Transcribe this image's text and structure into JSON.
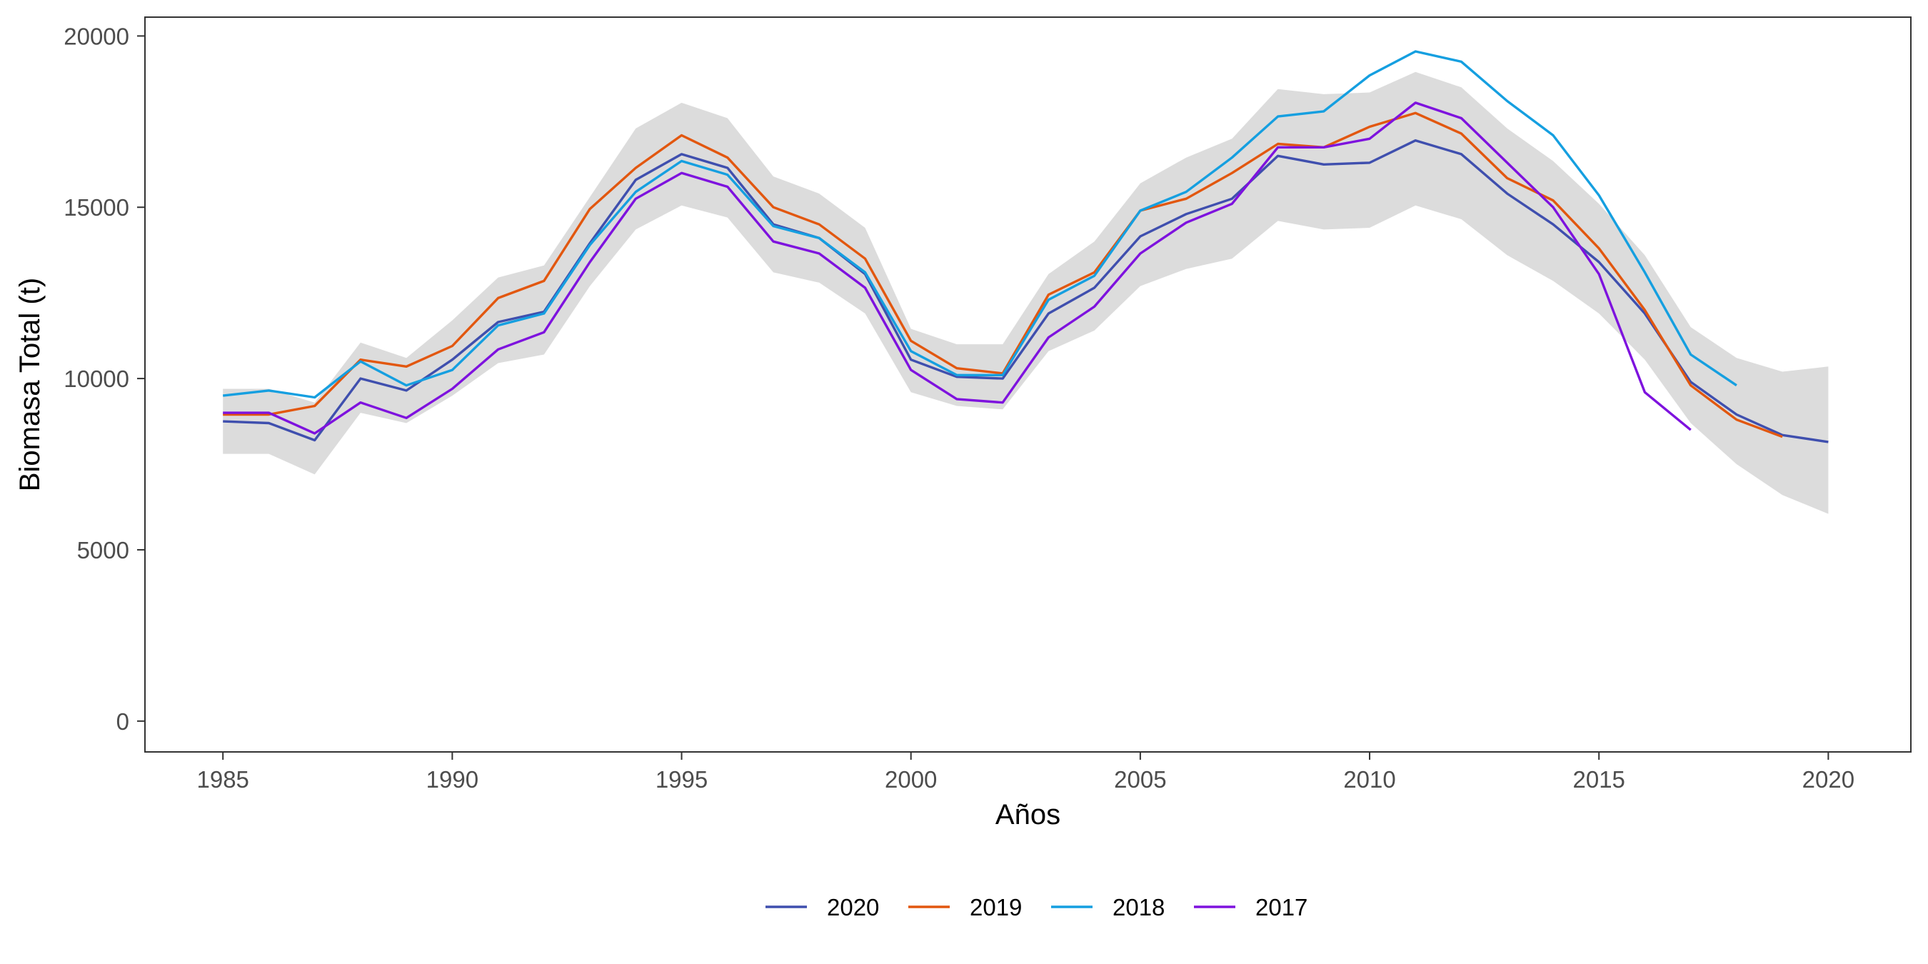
{
  "chart_data": {
    "type": "line",
    "title": "",
    "xlabel": "Años",
    "ylabel": "Biomasa Total (t)",
    "xlim": [
      1983.3,
      2021.8
    ],
    "ylim": [
      -900,
      20550
    ],
    "xticks": [
      1985,
      1990,
      1995,
      2000,
      2005,
      2010,
      2015,
      2020
    ],
    "yticks": [
      0,
      5000,
      10000,
      15000,
      20000
    ],
    "grid": false,
    "legend_position": "bottom",
    "band": {
      "color": "#dcdcdc",
      "x": [
        1985,
        1986,
        1987,
        1988,
        1989,
        1990,
        1991,
        1992,
        1993,
        1994,
        1995,
        1996,
        1997,
        1998,
        1999,
        2000,
        2001,
        2002,
        2003,
        2004,
        2005,
        2006,
        2007,
        2008,
        2009,
        2010,
        2011,
        2012,
        2013,
        2014,
        2015,
        2016,
        2017,
        2018,
        2019,
        2020
      ],
      "lower": [
        7800,
        7800,
        7200,
        9000,
        8700,
        9500,
        10450,
        10700,
        12700,
        14350,
        15050,
        14700,
        13100,
        12800,
        11900,
        9600,
        9200,
        9100,
        10800,
        11400,
        12700,
        13200,
        13500,
        14600,
        14350,
        14400,
        15050,
        14650,
        13600,
        12850,
        11900,
        10550,
        8700,
        7500,
        6600,
        6050
      ],
      "upper": [
        9700,
        9700,
        9300,
        11050,
        10600,
        11700,
        12950,
        13300,
        15300,
        17300,
        18050,
        17600,
        15900,
        15400,
        14400,
        11450,
        11000,
        11000,
        13050,
        14000,
        15700,
        16450,
        17000,
        18450,
        18300,
        18350,
        18950,
        18500,
        17300,
        16350,
        15100,
        13600,
        11500,
        10600,
        10200,
        10350
      ]
    },
    "x": [
      1985,
      1986,
      1987,
      1988,
      1989,
      1990,
      1991,
      1992,
      1993,
      1994,
      1995,
      1996,
      1997,
      1998,
      1999,
      2000,
      2001,
      2002,
      2003,
      2004,
      2005,
      2006,
      2007,
      2008,
      2009,
      2010,
      2011,
      2012,
      2013,
      2014,
      2015,
      2016,
      2017,
      2018,
      2019,
      2020
    ],
    "series": [
      {
        "name": "2020",
        "color": "#3f4fae",
        "values": [
          8750,
          8700,
          8200,
          10000,
          9650,
          10550,
          11650,
          11950,
          13950,
          15800,
          16550,
          16150,
          14500,
          14100,
          13050,
          10550,
          10050,
          10000,
          11900,
          12650,
          14150,
          14800,
          15250,
          16500,
          16250,
          16300,
          16950,
          16550,
          15400,
          14500,
          13400,
          11900,
          9900,
          8950,
          8350,
          8150
        ]
      },
      {
        "name": "2019",
        "color": "#e2570f",
        "values": [
          8950,
          8950,
          9200,
          10550,
          10350,
          10950,
          12350,
          12850,
          14950,
          16150,
          17100,
          16450,
          15000,
          14500,
          13500,
          11100,
          10300,
          10150,
          12450,
          13100,
          14900,
          15250,
          16000,
          16850,
          16750,
          17350,
          17750,
          17150,
          15850,
          15200,
          13800,
          12000,
          9800,
          8800,
          8300,
          null
        ]
      },
      {
        "name": "2018",
        "color": "#159fe0",
        "values": [
          9500,
          9650,
          9450,
          10500,
          9800,
          10250,
          11550,
          11900,
          13900,
          15450,
          16350,
          15950,
          14450,
          14100,
          13100,
          10800,
          10100,
          10100,
          12300,
          13000,
          14900,
          15450,
          16450,
          17650,
          17800,
          18850,
          19550,
          19250,
          18100,
          17100,
          15350,
          13100,
          10700,
          9800,
          null,
          null
        ]
      },
      {
        "name": "2017",
        "color": "#7e12de",
        "values": [
          9000,
          9000,
          8400,
          9300,
          8850,
          9700,
          10850,
          11350,
          13400,
          15250,
          16000,
          15600,
          14000,
          13650,
          12650,
          10250,
          9400,
          9300,
          11200,
          12100,
          13650,
          14550,
          15100,
          16750,
          16750,
          17000,
          18050,
          17600,
          16300,
          15000,
          13050,
          9600,
          8500,
          null,
          null,
          null
        ]
      }
    ]
  }
}
